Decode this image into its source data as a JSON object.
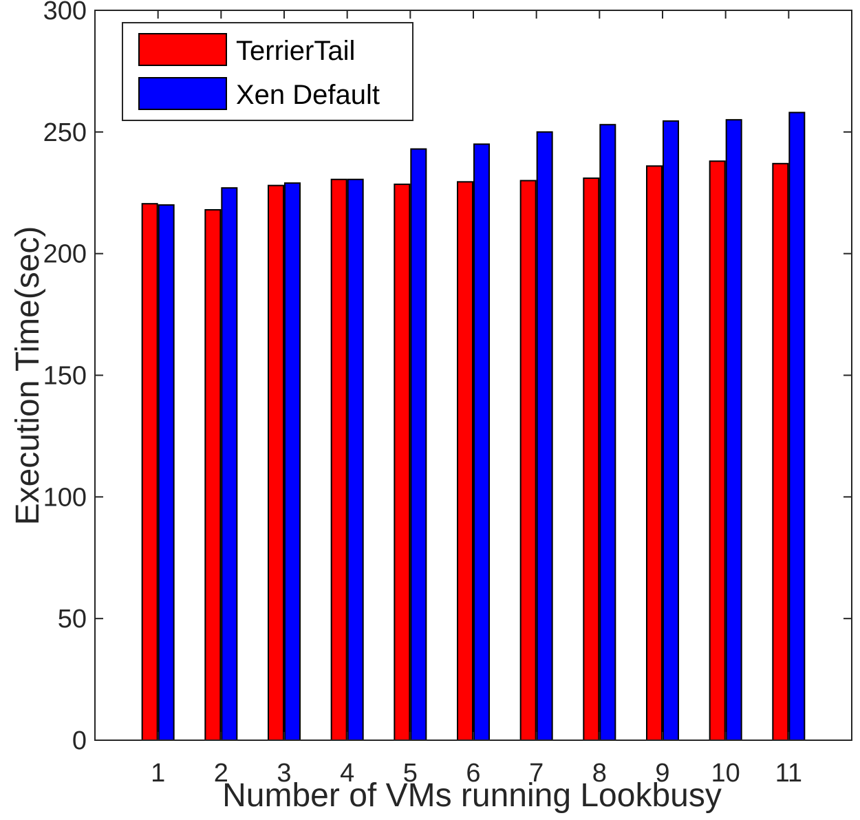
{
  "chart_data": {
    "type": "bar",
    "xlabel": "Number of VMs running Lookbusy",
    "ylabel": "Execution Time(sec)",
    "categories": [
      "1",
      "2",
      "3",
      "4",
      "5",
      "6",
      "7",
      "8",
      "9",
      "10",
      "11"
    ],
    "ylim": [
      0,
      300
    ],
    "yticks": [
      0,
      50,
      100,
      150,
      200,
      250,
      300
    ],
    "grid": false,
    "legend_position": "top-left",
    "series": [
      {
        "name": "TerrierTail",
        "color": "#ff0000",
        "values": [
          220.5,
          218,
          228,
          230.5,
          228.5,
          229.5,
          230,
          231,
          236,
          238,
          237
        ]
      },
      {
        "name": "Xen Default",
        "color": "#0000ff",
        "values": [
          220,
          227,
          229,
          230.5,
          243,
          245,
          250,
          253,
          254.5,
          255,
          258
        ]
      }
    ]
  }
}
